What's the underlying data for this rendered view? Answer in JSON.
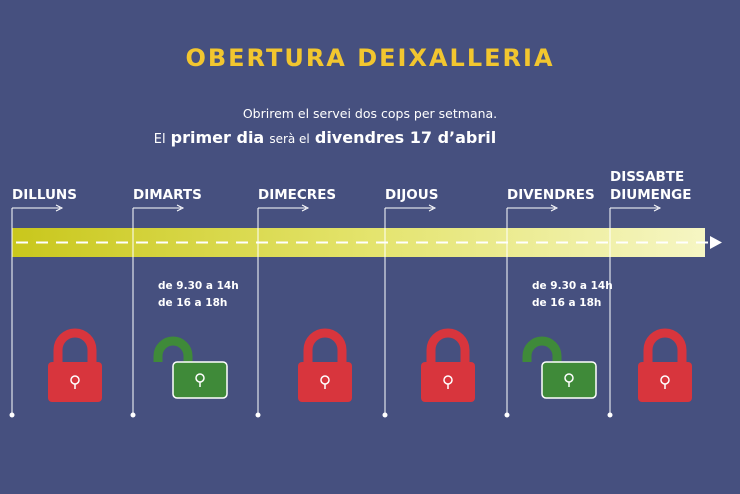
{
  "header": {
    "title": "OBERTURA DEIXALLERIA",
    "subtitle": "Obrirem el servei dos cops per setmana.",
    "highlight": [
      "El",
      "primer dia",
      "serà el",
      "divendres 17 d’abril"
    ]
  },
  "days": [
    {
      "label": [
        "DILLUNS"
      ]
    },
    {
      "label": [
        "DIMARTS"
      ],
      "hours": [
        "de 9.30 a 14h",
        "de 16 a 18h"
      ]
    },
    {
      "label": [
        "DIMECRES"
      ]
    },
    {
      "label": [
        "DIJOUS"
      ]
    },
    {
      "label": [
        "DIVENDRES"
      ],
      "hours": [
        "de 9.30 a 14h",
        "de 16 a 18h"
      ]
    },
    {
      "label": [
        "DISSABTE",
        "DIUMENGE"
      ]
    }
  ]
}
